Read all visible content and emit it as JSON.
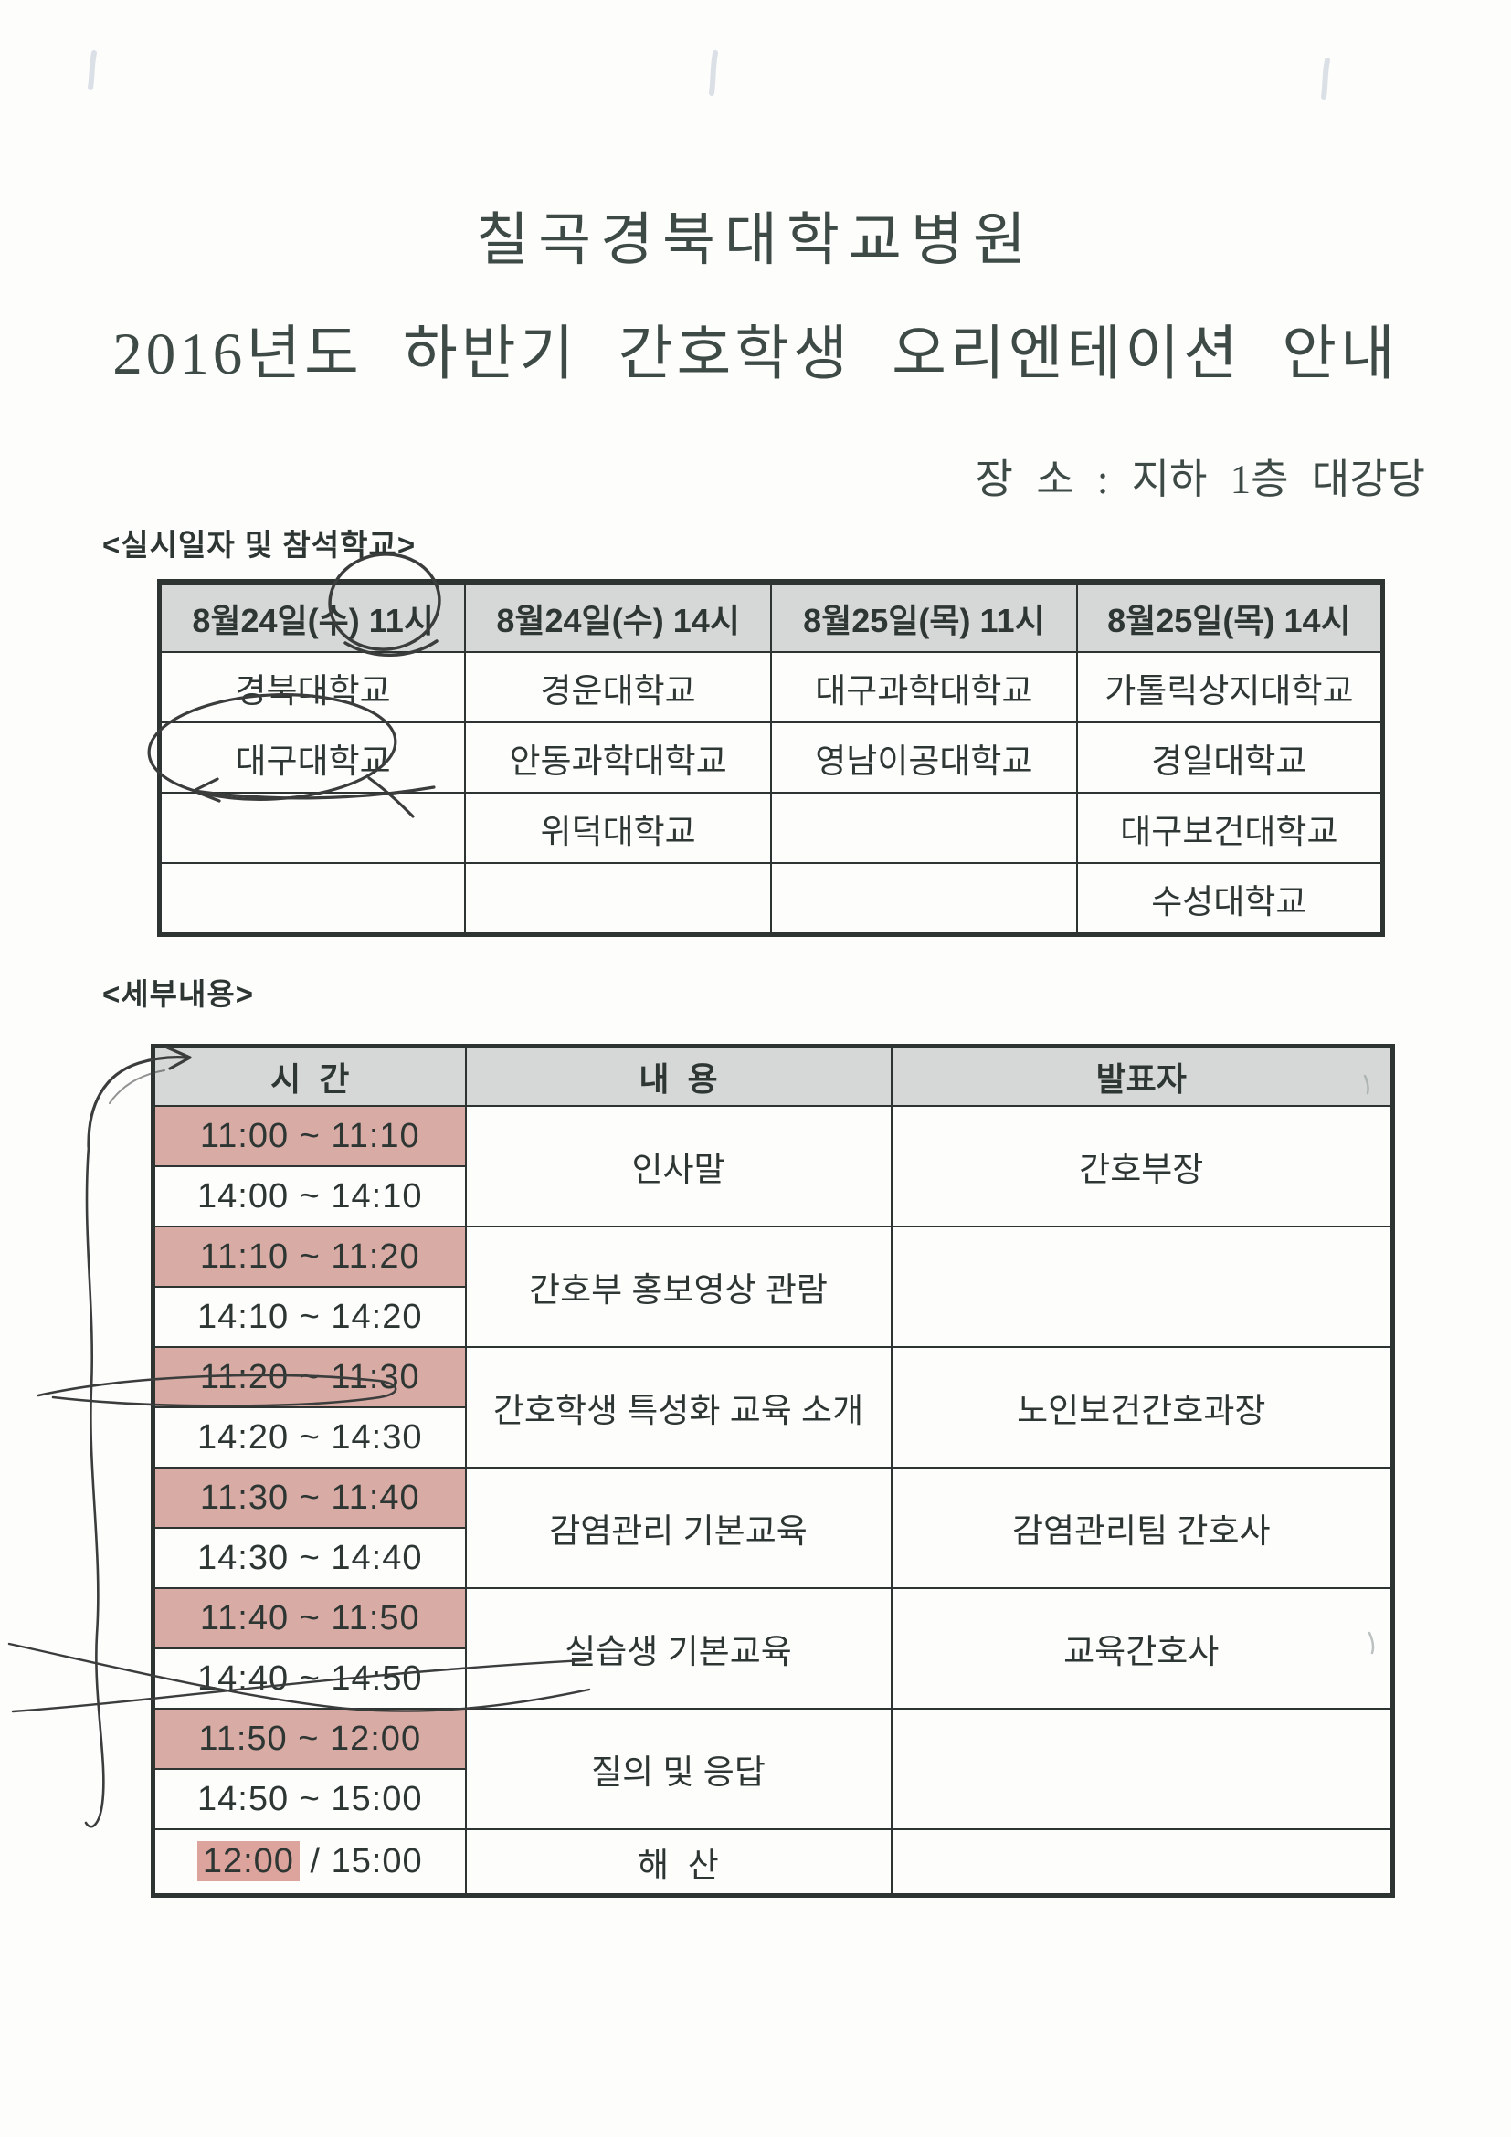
{
  "page": {
    "title_line1": "칠곡경북대학교병원",
    "title_line2": "2016년도 하반기 간호학생 오리엔테이션 안내",
    "location_line": "장 소 : 지하 1층 대강당",
    "section1_label": "<실시일자 및 참석학교>",
    "section2_label": "<세부내용>"
  },
  "schools_table": {
    "headers": [
      "8월24일(수) 11시",
      "8월24일(수) 14시",
      "8월25일(목) 11시",
      "8월25일(목) 14시"
    ],
    "rows": [
      [
        "경북대학교",
        "경운대학교",
        "대구과학대학교",
        "가톨릭상지대학교"
      ],
      [
        "대구대학교",
        "안동과학대학교",
        "영남이공대학교",
        "경일대학교"
      ],
      [
        "",
        "위덕대학교",
        "",
        "대구보건대학교"
      ],
      [
        "",
        "",
        "",
        "수성대학교"
      ]
    ]
  },
  "schedule_table": {
    "headers": [
      "시  간",
      "내  용",
      "발표자"
    ],
    "rows": [
      {
        "time1": "11:00 ~ 11:10",
        "time2": "14:00 ~ 14:10",
        "content": "인사말",
        "presenter": "간호부장"
      },
      {
        "time1": "11:10 ~ 11:20",
        "time2": "14:10 ~ 14:20",
        "content": "간호부 홍보영상 관람",
        "presenter": ""
      },
      {
        "time1": "11:20 ~ 11:30",
        "time2": "14:20 ~ 14:30",
        "content": "간호학생 특성화 교육 소개",
        "presenter": "노인보건간호과장"
      },
      {
        "time1": "11:30 ~ 11:40",
        "time2": "14:30 ~ 14:40",
        "content": "감염관리 기본교육",
        "presenter": "감염관리팀 간호사"
      },
      {
        "time1": "11:40 ~ 11:50",
        "time2": "14:40 ~ 14:50",
        "content": "실습생 기본교육",
        "presenter": "교육간호사"
      },
      {
        "time1": "11:50 ~ 12:00",
        "time2": "14:50 ~ 15:00",
        "content": "질의 및 응답",
        "presenter": ""
      }
    ],
    "final_row": {
      "highlight": "12:00",
      "separator": " / ",
      "rest": "15:00",
      "content": "해  산",
      "presenter": ""
    }
  },
  "annotations": {
    "circled_header_time": "11시",
    "circled_school": "대구대학교",
    "arrow_target": "시 간"
  },
  "colors": {
    "row_pink": "#d8aba5",
    "final_highlight_pink": "#dda49d",
    "header_gray": "#d5d8d6",
    "ink": "#2d3431",
    "pen": "#3a3d3c"
  }
}
